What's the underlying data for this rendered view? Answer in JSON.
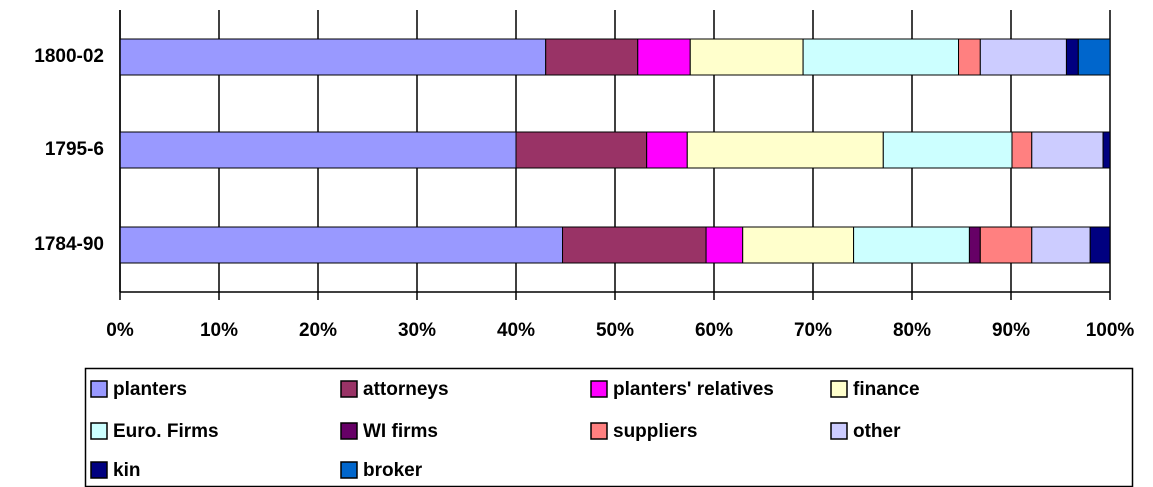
{
  "chart_data": {
    "type": "stacked_barh",
    "categories": [
      "1800-02",
      "1795-6",
      "1784-90"
    ],
    "series": [
      {
        "name": "planters",
        "color": "#9999ff",
        "values": [
          43.0,
          40.0,
          44.7
        ]
      },
      {
        "name": "attorneys",
        "color": "#993366",
        "values": [
          9.3,
          13.2,
          14.5
        ]
      },
      {
        "name": "planters' relatives",
        "color": "#ff00ff",
        "values": [
          5.3,
          4.1,
          3.7
        ]
      },
      {
        "name": "finance",
        "color": "#ffffcc",
        "values": [
          11.4,
          19.8,
          11.2
        ]
      },
      {
        "name": "Euro. Firms",
        "color": "#ccffff",
        "values": [
          15.7,
          13.0,
          11.7
        ]
      },
      {
        "name": "WI firms",
        "color": "#660066",
        "values": [
          0,
          0,
          1.1
        ]
      },
      {
        "name": "suppliers",
        "color": "#ff8080",
        "values": [
          2.2,
          2.0,
          5.2
        ]
      },
      {
        "name": "other",
        "color": "#ccccff",
        "values": [
          8.7,
          7.2,
          5.9
        ]
      },
      {
        "name": "kin",
        "color": "#000080",
        "values": [
          1.2,
          0.7,
          2.0
        ]
      },
      {
        "name": "broker",
        "color": "#0066cc",
        "values": [
          3.2,
          0,
          0
        ]
      }
    ],
    "xlim": [
      0,
      100
    ],
    "xticks": [
      {
        "value": 0,
        "label": "0%"
      },
      {
        "value": 10,
        "label": "10%"
      },
      {
        "value": 20,
        "label": "20%"
      },
      {
        "value": 30,
        "label": "30%"
      },
      {
        "value": 40,
        "label": "40%"
      },
      {
        "value": 50,
        "label": "50%"
      },
      {
        "value": 60,
        "label": "60%"
      },
      {
        "value": 70,
        "label": "70%"
      },
      {
        "value": 80,
        "label": "80%"
      },
      {
        "value": 90,
        "label": "90%"
      },
      {
        "value": 100,
        "label": "100%"
      }
    ],
    "grid": true,
    "legend": "bottom"
  }
}
